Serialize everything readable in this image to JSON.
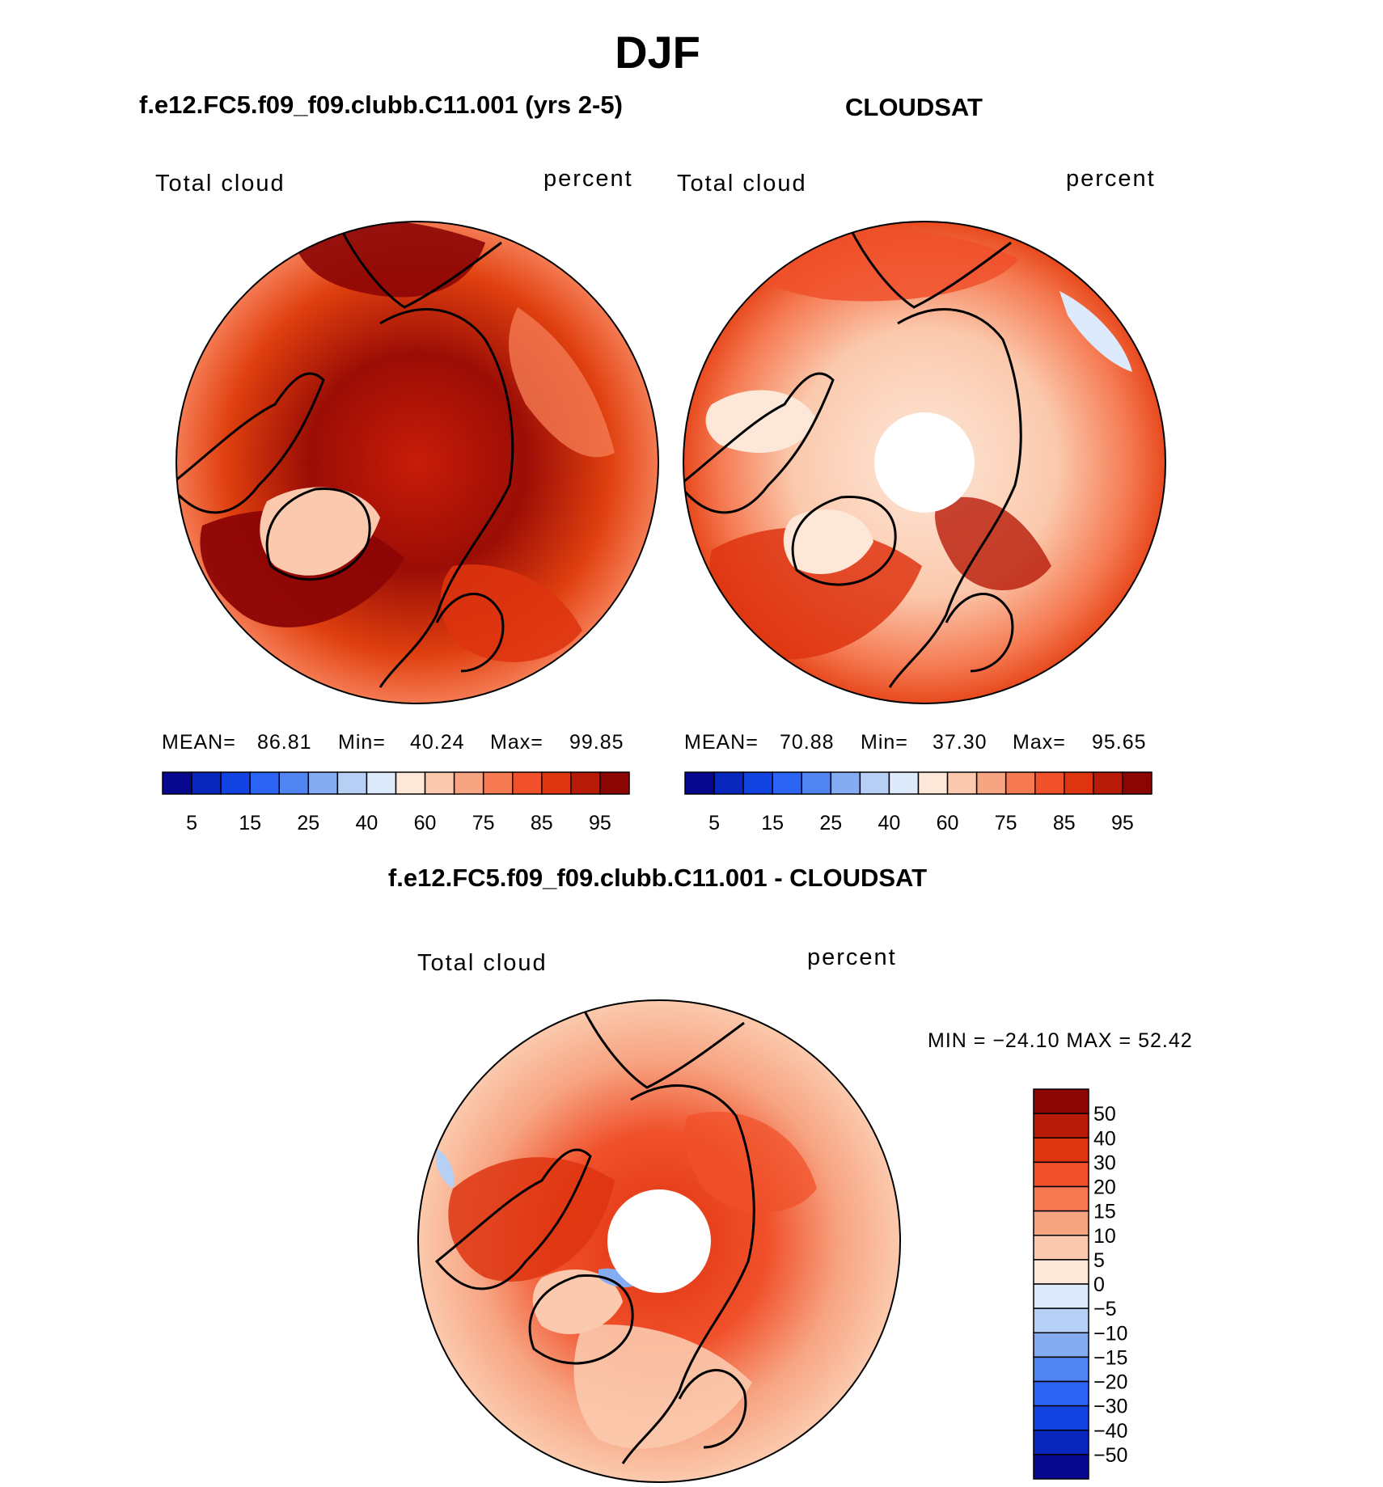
{
  "figure": {
    "season": "DJF",
    "model_title": "f.e12.FC5.f09_f09.clubb.C11.001 (yrs 2-5)",
    "obs_title": "CLOUDSAT",
    "diff_title": "f.e12.FC5.f09_f09.clubb.C11.001 - CLOUDSAT"
  },
  "panels": {
    "model": {
      "variable": "Total cloud",
      "units": "percent",
      "mean_label": "MEAN=",
      "mean": "86.81",
      "min_label": "Min=",
      "min": "40.24",
      "max_label": "Max=",
      "max": "99.85"
    },
    "obs": {
      "variable": "Total cloud",
      "units": "percent",
      "mean_label": "MEAN=",
      "mean": "70.88",
      "min_label": "Min=",
      "min": "37.30",
      "max_label": "Max=",
      "max": "95.65"
    },
    "diff": {
      "variable": "Total cloud",
      "units": "percent",
      "minmax_text": "MIN = −24.10 MAX =  52.42"
    }
  },
  "colorbars": {
    "abs": {
      "colors": [
        "#08088f",
        "#0a27bd",
        "#1043e0",
        "#2b63f5",
        "#4f84f2",
        "#85abf2",
        "#b6cff5",
        "#ddeafb",
        "#fde7d8",
        "#fbc9ad",
        "#f7a482",
        "#f57a52",
        "#f0502a",
        "#de3410",
        "#b81a08",
        "#8c0505"
      ],
      "tick_labels": [
        "5",
        "15",
        "25",
        "40",
        "60",
        "75",
        "85",
        "95"
      ]
    },
    "diff": {
      "colors": [
        "#8c0505",
        "#b81a08",
        "#de3410",
        "#f0502a",
        "#f57a52",
        "#f7a482",
        "#fbc9ad",
        "#fde7d8",
        "#ddeafb",
        "#b6cff5",
        "#85abf2",
        "#4f84f2",
        "#2b63f5",
        "#1043e0",
        "#0a27bd",
        "#08088f"
      ],
      "tick_labels": [
        "50",
        "40",
        "30",
        "20",
        "15",
        "10",
        "5",
        "0",
        "−5",
        "−10",
        "−15",
        "−20",
        "−30",
        "−40",
        "−50"
      ]
    }
  }
}
